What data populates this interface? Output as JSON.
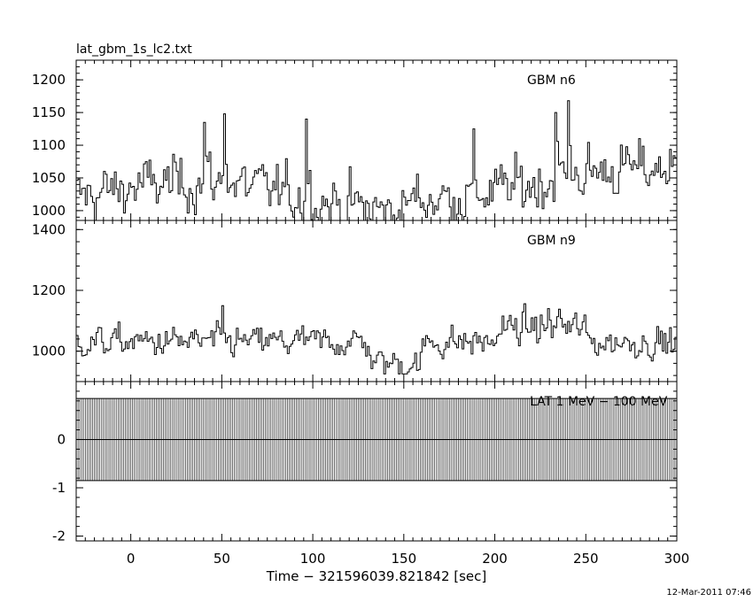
{
  "window": {
    "title": "lat_gbm_1s_lc2.txt",
    "timestamp": "12-Mar-2011 07:46"
  },
  "chart_data": {
    "type": "line",
    "title": "lat_gbm_1s_lc2.txt",
    "xlabel": "Time − 321596039.821842 [sec]",
    "xlim": [
      -30,
      300
    ],
    "xticks": [
      0,
      50,
      100,
      150,
      200,
      250,
      300
    ],
    "x_step": 1,
    "panels": [
      {
        "name": "GBM n6",
        "ylim": [
          985,
          1230
        ],
        "yticks": [
          1000,
          1050,
          1100,
          1150,
          1200
        ],
        "baseline": 1020,
        "noise": 28,
        "clip_min": 985,
        "spikes": [
          {
            "x": 40,
            "y": 1135
          },
          {
            "x": 51,
            "y": 1148
          },
          {
            "x": 96,
            "y": 1140
          },
          {
            "x": 188,
            "y": 1125
          },
          {
            "x": 233,
            "y": 1150
          },
          {
            "x": 240,
            "y": 1168
          }
        ]
      },
      {
        "name": "GBM n9",
        "ylim": [
          900,
          1430
        ],
        "yticks": [
          1000,
          1200,
          1400
        ],
        "baseline": 1030,
        "noise": 34,
        "clip_min": 925,
        "spikes": [
          {
            "x": 50,
            "y": 1150
          },
          {
            "x": 229,
            "y": 1140
          },
          {
            "x": 235,
            "y": 1138
          }
        ]
      },
      {
        "name": "LAT 1 MeV − 100 MeV",
        "ylim": [
          -2.1,
          1.2
        ],
        "yticks": [
          -2,
          -1,
          0
        ],
        "bin_low": -0.85,
        "bin_high": 0.85
      }
    ]
  }
}
